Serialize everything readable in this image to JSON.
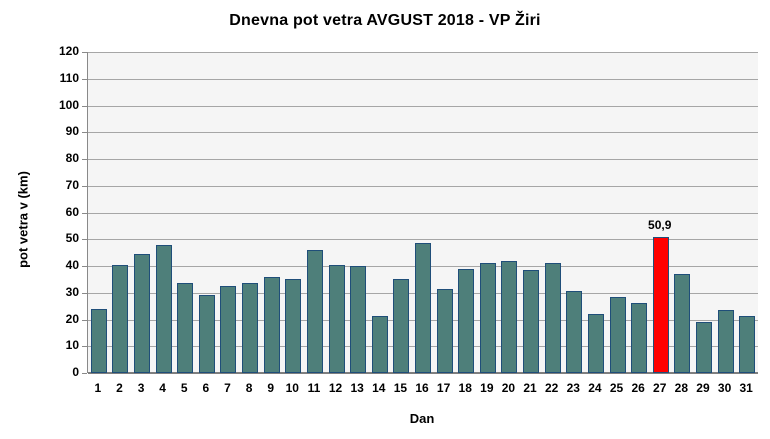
{
  "chart_data": {
    "type": "bar",
    "title": "Dnevna pot vetra AVGUST 2018 - VP Žiri",
    "xlabel": "Dan",
    "ylabel": "pot vetra  v (km)",
    "categories": [
      "1",
      "2",
      "3",
      "4",
      "5",
      "6",
      "7",
      "8",
      "9",
      "10",
      "11",
      "12",
      "13",
      "14",
      "15",
      "16",
      "17",
      "18",
      "19",
      "20",
      "21",
      "22",
      "23",
      "24",
      "25",
      "26",
      "27",
      "28",
      "29",
      "30",
      "31"
    ],
    "values": [
      24,
      40.5,
      44.5,
      48,
      33.5,
      29,
      32.5,
      33.5,
      36,
      35,
      46,
      40.5,
      40,
      21.5,
      35,
      48.5,
      31.5,
      39,
      41,
      42,
      38.5,
      41,
      30.5,
      22,
      28.5,
      26,
      50.9,
      37,
      19,
      23.5,
      21.5
    ],
    "ylim": [
      0,
      120
    ],
    "ytick_step": 10,
    "grid": true,
    "legend": "none",
    "plot_background": "#f5f5f5",
    "gridline_color": "#a6a6a6",
    "bar_color": "#4e7f7a",
    "bar_border_color": "#1f4e79",
    "highlight_day": "27",
    "highlight_index": 26,
    "highlight_color": "#ff0000",
    "highlight_label": "50,9"
  }
}
